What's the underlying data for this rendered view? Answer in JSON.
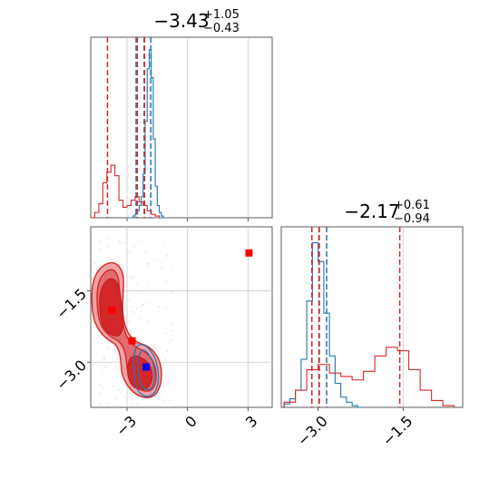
{
  "chart_data": [
    {
      "panel": "marginal-x",
      "type": "histogram",
      "title": {
        "median": "−3.43",
        "plus": "+1.05",
        "minus": "−0.43"
      },
      "xlim": [
        -4.8,
        4.2
      ],
      "series": [
        {
          "color": "#1f77b4",
          "bins": [
            -2.8,
            -2.7,
            -2.6,
            -2.5,
            -2.4,
            -2.3,
            -2.2,
            -2.1,
            -2.0,
            -1.9,
            -1.8,
            -1.7,
            -1.6,
            -1.5,
            -1.4,
            -1.3,
            -1.2,
            -1.1,
            -1.0
          ],
          "counts": [
            0.0,
            0.01,
            0.02,
            0.04,
            0.07,
            0.12,
            0.25,
            0.55,
            0.85,
            0.96,
            0.8,
            0.45,
            0.18,
            0.07,
            0.03,
            0.01,
            0.0,
            0.0
          ],
          "quantiles": [
            -2.55,
            -2.15,
            -1.82
          ]
        },
        {
          "color": "#d62728",
          "bins": [
            -4.8,
            -4.6,
            -4.4,
            -4.2,
            -4.0,
            -3.8,
            -3.6,
            -3.4,
            -3.2,
            -3.0,
            -2.8,
            -2.6,
            -2.4,
            -2.2,
            -2.0,
            -1.8,
            -1.6,
            -1.4
          ],
          "counts": [
            0.0,
            0.03,
            0.08,
            0.2,
            0.26,
            0.3,
            0.24,
            0.1,
            0.06,
            0.07,
            0.1,
            0.12,
            0.09,
            0.07,
            0.04,
            0.02,
            0.01
          ],
          "quantiles": [
            -3.97,
            -2.49,
            -2.13
          ]
        }
      ],
      "ticks": [
        -3,
        0,
        3
      ]
    },
    {
      "panel": "joint",
      "type": "contour-scatter",
      "xlim": [
        -4.8,
        4.2
      ],
      "ylim": [
        -3.95,
        -0.15
      ],
      "xticks": [
        -3,
        0,
        3
      ],
      "xtick_labels": [
        "−3",
        "0",
        "3"
      ],
      "yticks": [
        -1.5,
        -3.0
      ],
      "ytick_labels": [
        "−1.5",
        "−3.0"
      ],
      "markers": [
        {
          "x": 3.05,
          "y": -0.7,
          "color": "#ff0000"
        },
        {
          "x": -3.75,
          "y": -1.9,
          "color": "#ff0000"
        },
        {
          "x": -2.75,
          "y": -2.55,
          "color": "#ff0000"
        },
        {
          "x": -2.05,
          "y": -3.1,
          "color": "#0000ff"
        }
      ]
    },
    {
      "panel": "marginal-y",
      "type": "histogram",
      "title": {
        "median": "−2.17",
        "plus": "+0.61",
        "minus": "−0.94"
      },
      "xlim": [
        -3.65,
        -0.45
      ],
      "series": [
        {
          "color": "#1f77b4",
          "bins": [
            -3.6,
            -3.5,
            -3.4,
            -3.3,
            -3.2,
            -3.1,
            -3.0,
            -2.9,
            -2.8,
            -2.7,
            -2.6,
            -2.5,
            -2.4,
            -2.3,
            -2.2
          ],
          "counts": [
            0.02,
            0.05,
            0.1,
            0.28,
            0.62,
            0.96,
            0.85,
            0.55,
            0.3,
            0.14,
            0.06,
            0.03,
            0.01,
            0.0
          ],
          "quantiles": [
            -3.11,
            -2.98,
            -2.85
          ]
        },
        {
          "color": "#d62728",
          "bins": [
            -3.6,
            -3.4,
            -3.2,
            -3.0,
            -2.8,
            -2.6,
            -2.4,
            -2.2,
            -2.0,
            -1.8,
            -1.6,
            -1.4,
            -1.2,
            -1.0,
            -0.8,
            -0.6
          ],
          "counts": [
            0.03,
            0.1,
            0.22,
            0.25,
            0.2,
            0.18,
            0.16,
            0.21,
            0.3,
            0.35,
            0.33,
            0.22,
            0.1,
            0.04,
            0.01
          ],
          "quantiles": [
            -3.11,
            -2.98,
            -1.56
          ]
        }
      ],
      "ticks": [
        -3.0,
        -1.5
      ],
      "tick_labels": [
        "−3.0",
        "−1.5"
      ]
    }
  ]
}
